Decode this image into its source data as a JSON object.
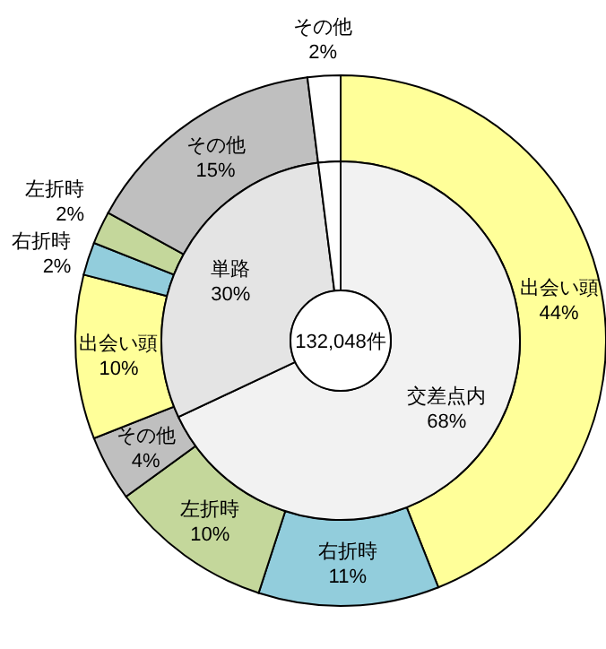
{
  "chart_data": [
    {
      "type": "donut",
      "categories": [
        "出会い頭",
        "右折時",
        "左折時",
        "その他",
        "出会い頭",
        "右折時",
        "左折時",
        "その他",
        "その他"
      ],
      "values": [
        44,
        11,
        10,
        4,
        10,
        2,
        2,
        15,
        2
      ],
      "value_labels": [
        "44%",
        "11%",
        "10%",
        "4%",
        "10%",
        "2%",
        "2%",
        "15%",
        "2%"
      ],
      "colors": [
        "#ffff99",
        "#92cddc",
        "#c4d79b",
        "#bfbfbf",
        "#ffff99",
        "#92cddc",
        "#c4d79b",
        "#bfbfbf",
        "#ffffff"
      ]
    },
    {
      "type": "donut",
      "categories": [
        "交差点内",
        "単路",
        null
      ],
      "values": [
        68,
        30,
        2
      ],
      "value_labels": [
        "68%",
        "30%",
        null
      ],
      "colors": [
        "#f2f2f2",
        "#e4e4e4",
        "#ffffff"
      ],
      "annotations": [
        "132,048件"
      ]
    }
  ]
}
